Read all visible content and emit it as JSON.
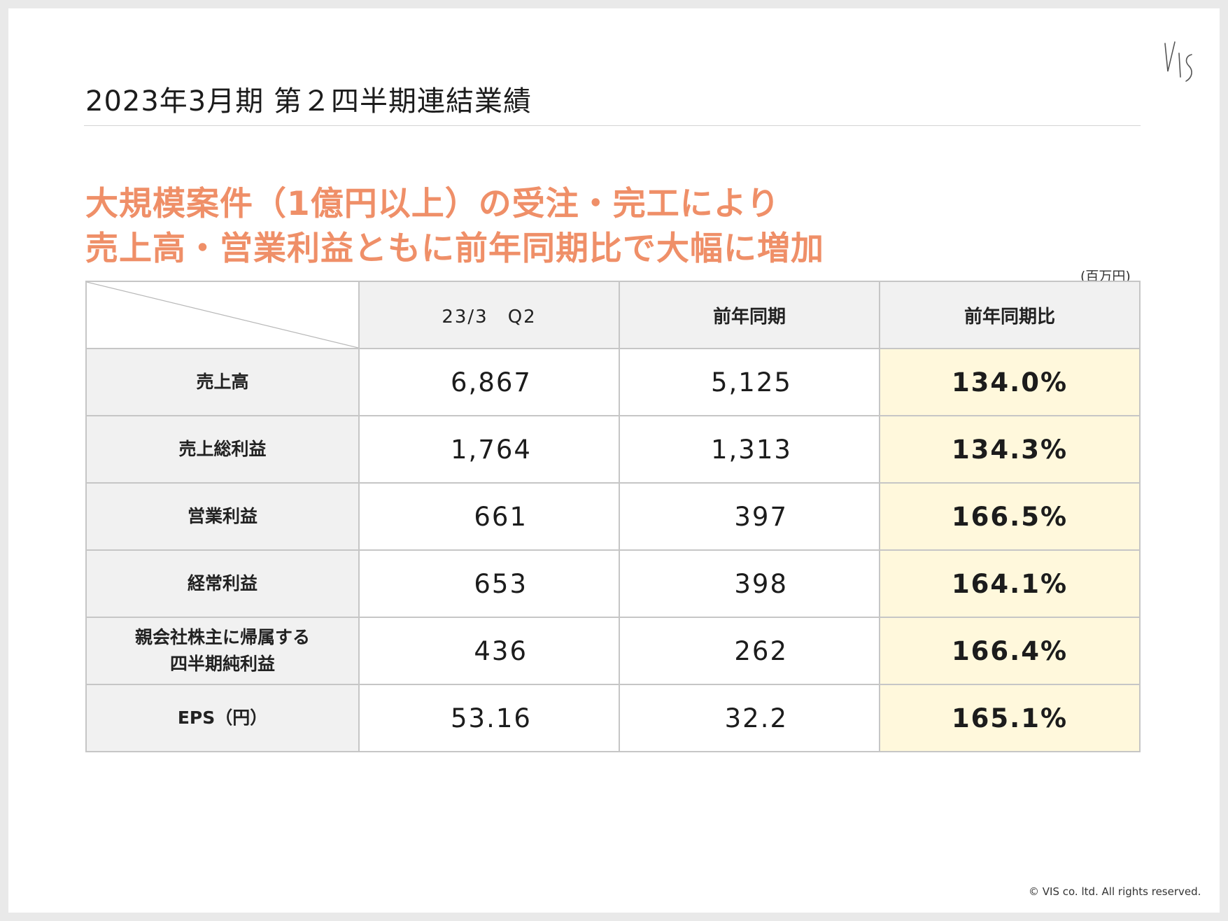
{
  "page_title": "2023年3月期 第２四半期連結業績",
  "headline": {
    "line1": "大規模案件（1億円以上）の受注・完工により",
    "line2": "売上高・営業利益ともに前年同期比で大幅に増加"
  },
  "unit_note": "(百万円)",
  "table": {
    "headers": [
      "23/3　Q2",
      "前年同期",
      "前年同期比"
    ],
    "rows": [
      {
        "label": [
          "売上高"
        ],
        "current": "6,867",
        "previous": "5,125",
        "ratio": "134.0%"
      },
      {
        "label": [
          "売上総利益"
        ],
        "current": "1,764",
        "previous": "1,313",
        "ratio": "134.3%"
      },
      {
        "label": [
          "営業利益"
        ],
        "current": "661",
        "previous": "397",
        "ratio": "166.5%"
      },
      {
        "label": [
          "経常利益"
        ],
        "current": "653",
        "previous": "398",
        "ratio": "164.1%"
      },
      {
        "label": [
          "親会社株主に帰属する",
          "四半期純利益"
        ],
        "current": "436",
        "previous": "262",
        "ratio": "166.4%"
      },
      {
        "label": [
          "EPS（円）"
        ],
        "current": "53.16",
        "previous": "32.2",
        "ratio": "165.1%"
      }
    ]
  },
  "logo_text": "VIS",
  "copyright": "© VIS co. ltd. All rights reserved.",
  "colors": {
    "headline": "#ef8f68",
    "header_bg": "#f1f1f1",
    "ratio_bg": "#fff8dc",
    "grid": "#c6c6c6"
  }
}
